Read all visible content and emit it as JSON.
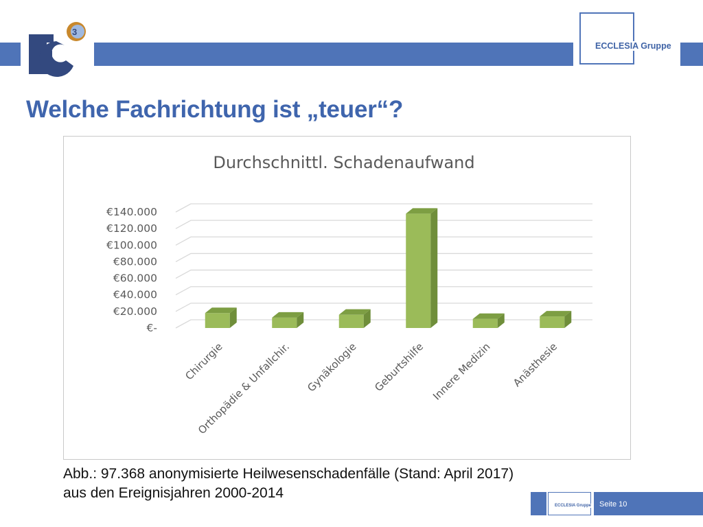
{
  "header": {
    "logo_badge": "3",
    "brand": "ECCLESIA Gruppe"
  },
  "slide": {
    "title": "Welche Fachrichtung ist „teuer“?",
    "caption_line1": "Abb.: 97.368 anonymisierte Heilwesenschadenfälle (Stand: April 2017)",
    "caption_line2": "aus den Ereignisjahren 2000-2014"
  },
  "footer": {
    "brand": "ECCLESIA Gruppe",
    "page": "Seite 10"
  },
  "colors": {
    "accent_blue": "#4f74b8",
    "bar_front": "#9bbb59",
    "bar_side": "#6f8e3a",
    "bar_top": "#7d9e43"
  },
  "chart_data": {
    "type": "bar",
    "title": "Durchschnittl. Schadenaufwand",
    "categories": [
      "Chirurgie",
      "Orthopädie & Unfallchir.",
      "Gynäkologie",
      "Geburtshilfe",
      "Innere Medizin",
      "Anästhesie"
    ],
    "values": [
      18000,
      12500,
      16000,
      138000,
      11000,
      14000
    ],
    "ylim": [
      0,
      140000
    ],
    "yticks": [
      0,
      20000,
      40000,
      60000,
      80000,
      100000,
      120000,
      140000
    ],
    "ytick_labels": [
      "€-",
      "€20.000",
      "€40.000",
      "€60.000",
      "€80.000",
      "€100.000",
      "€120.000",
      "€140.000"
    ],
    "xlabel": "",
    "ylabel": "",
    "grid": true,
    "legend": "none",
    "style": "3d-column"
  }
}
